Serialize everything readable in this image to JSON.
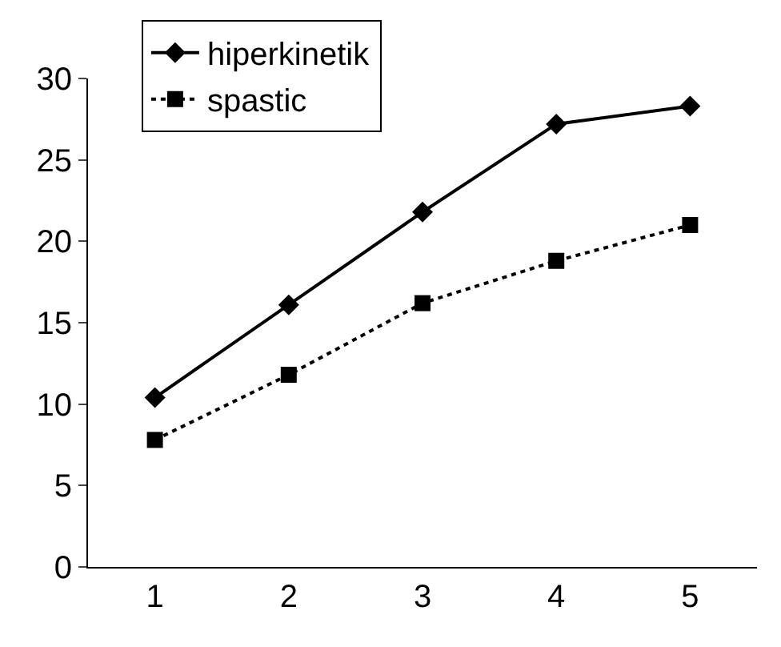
{
  "chart_data": {
    "type": "line",
    "categories": [
      "1",
      "2",
      "3",
      "4",
      "5"
    ],
    "series": [
      {
        "name": "hiperkinetik",
        "color": "#000000",
        "values": [
          10.4,
          16.1,
          21.8,
          27.2,
          28.3
        ],
        "marker": "diamond",
        "line_style": "solid"
      },
      {
        "name": "spastic",
        "color": "#000000",
        "values": [
          7.8,
          11.8,
          16.2,
          18.8,
          21.0
        ],
        "marker": "square",
        "line_style": "dotted"
      }
    ],
    "ylim": [
      0,
      30
    ],
    "yticks": [
      0,
      5,
      10,
      15,
      20,
      25,
      30
    ],
    "legend": "top left"
  }
}
